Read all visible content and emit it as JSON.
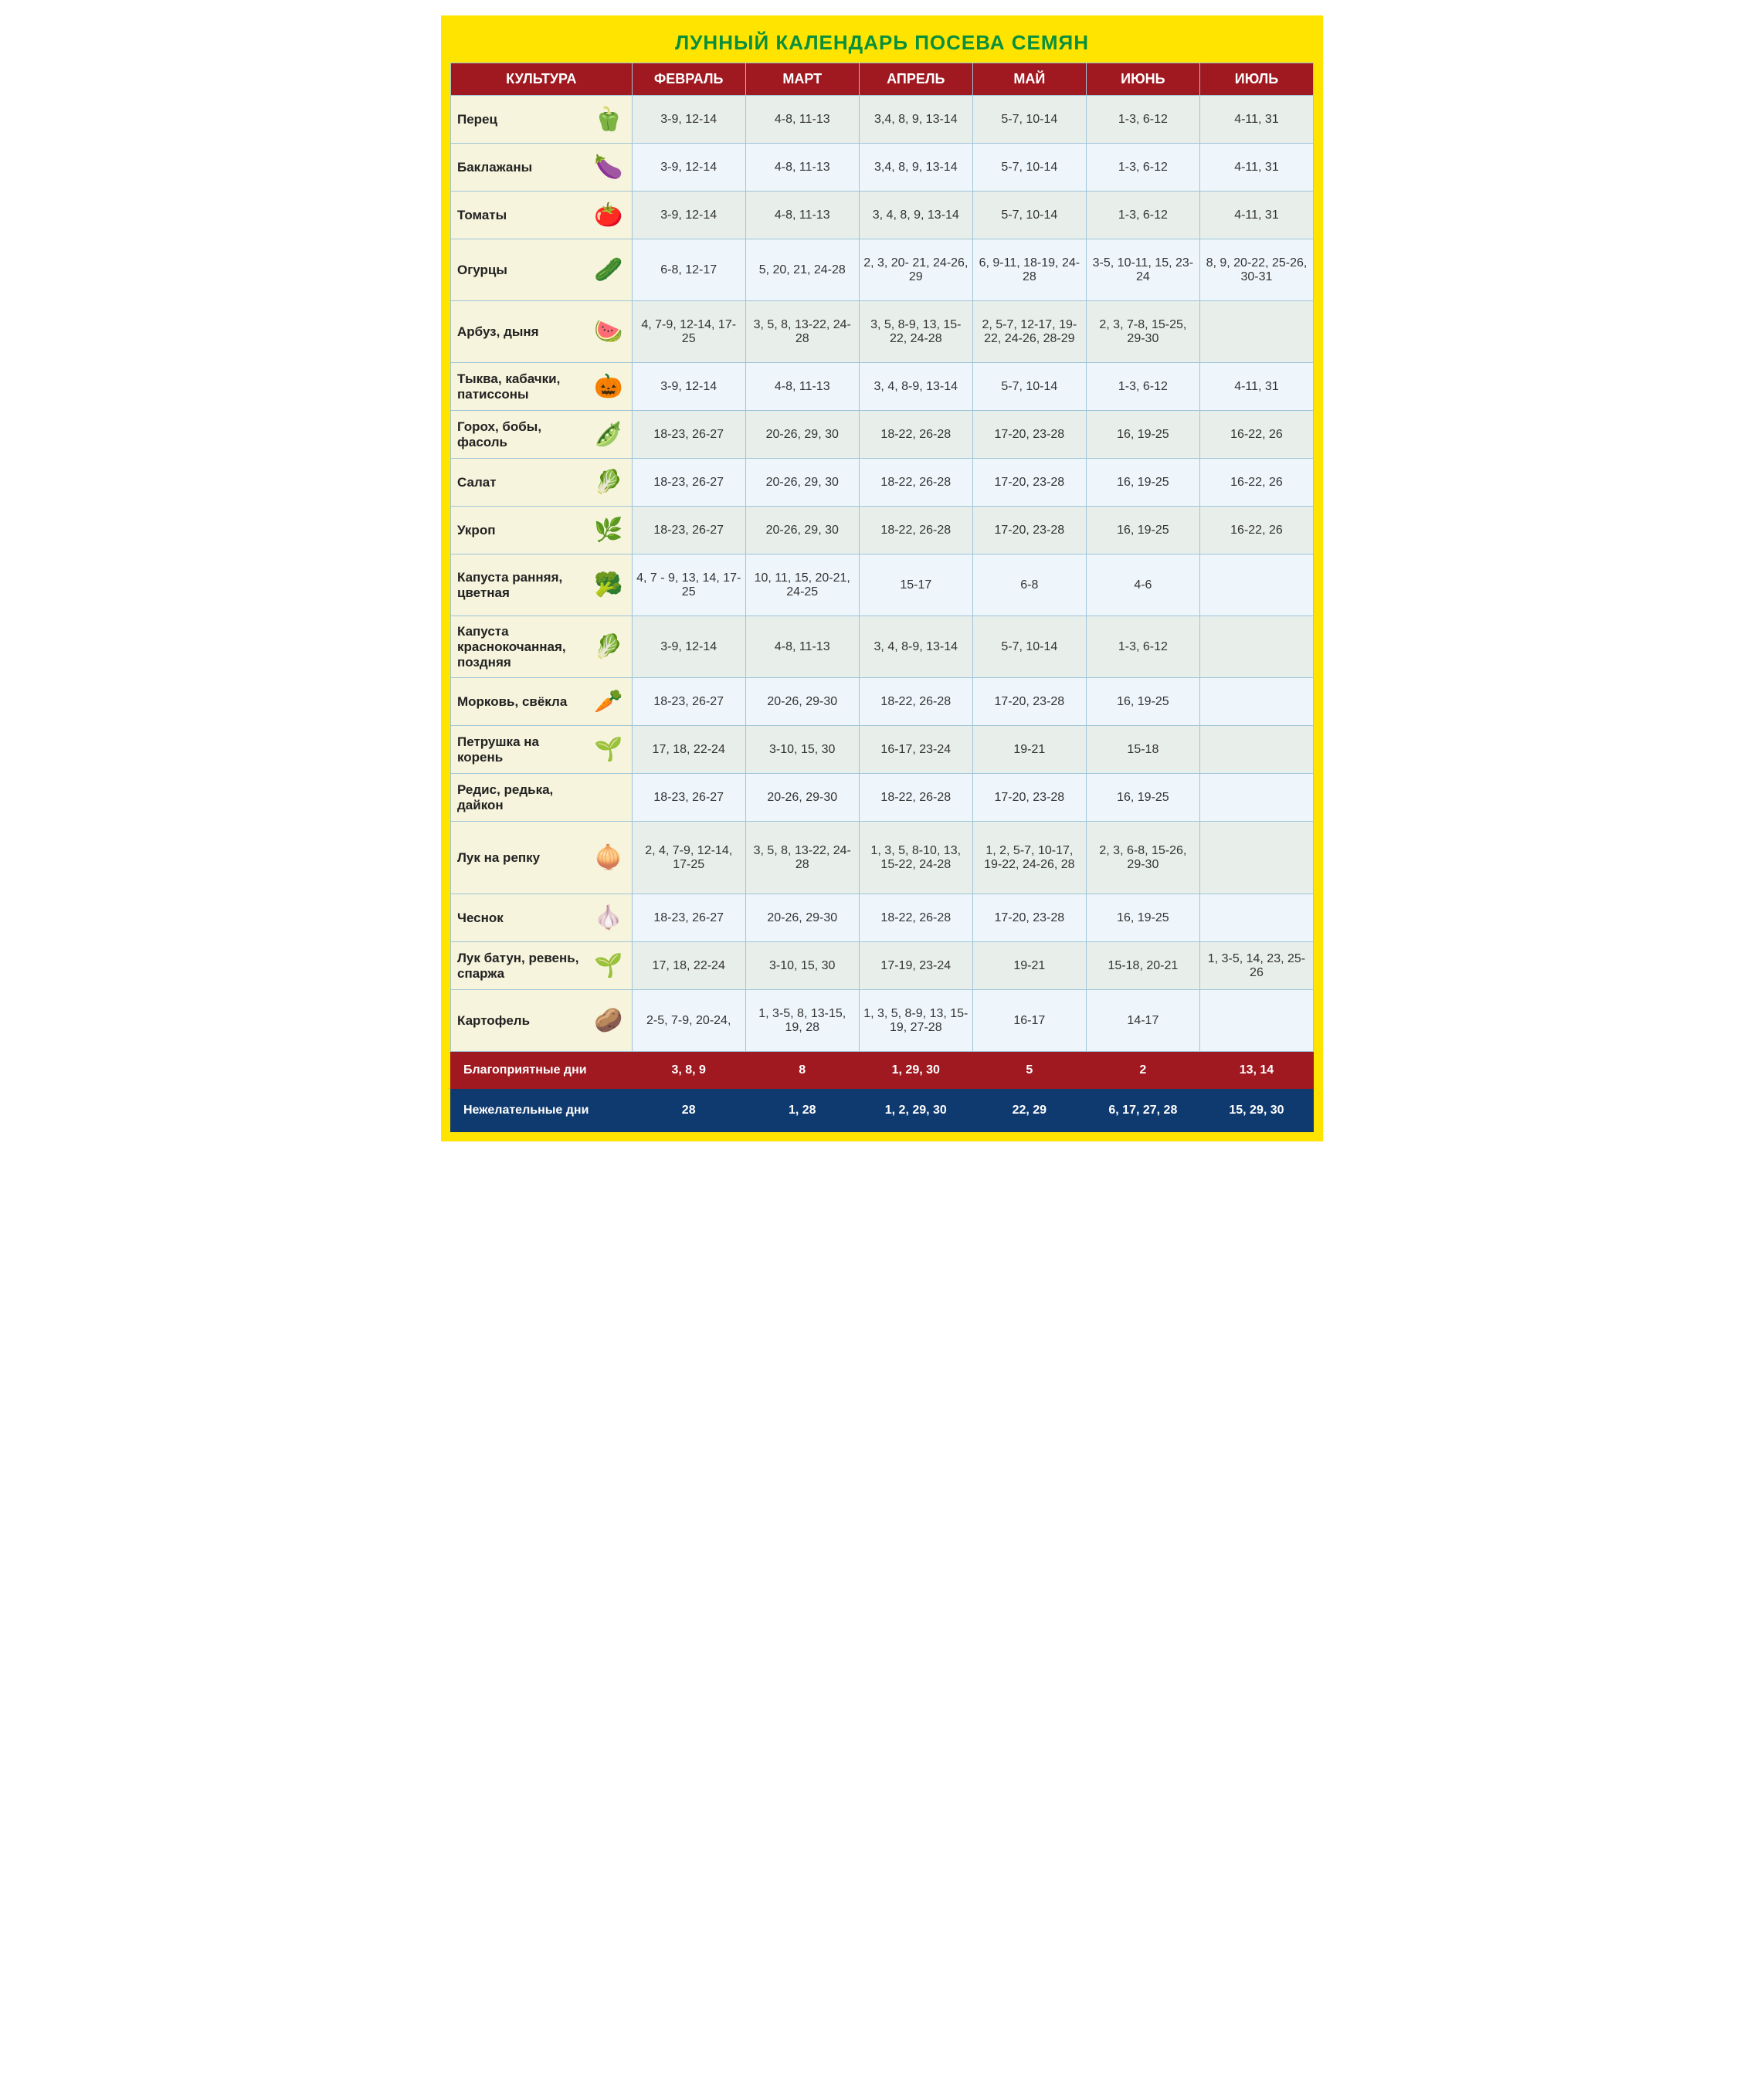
{
  "title": "ЛУННЫЙ КАЛЕНДАРЬ ПОСЕВА СЕМЯН",
  "title_color": "#0a8f3c",
  "title_fontsize": 26,
  "outer_border_color": "#ffe400",
  "title_bg": "#ffe400",
  "header_bg": "#a01820",
  "header_text_color": "#ffffff",
  "grid_border_color": "#9fc5d8",
  "crop_col_bg": "#f6f4dc",
  "row_alt_bg": [
    "#e8eeea",
    "#eef6fb"
  ],
  "cell_text_color": "#333333",
  "cell_fontsize": 16,
  "crop_fontsize": 17,
  "favorable_bg": "#a01820",
  "unfavorable_bg": "#0f3a6f",
  "columns": [
    "КУЛЬТУРА",
    "ФЕВРАЛЬ",
    "МАРТ",
    "АПРЕЛЬ",
    "МАЙ",
    "ИЮНЬ",
    "ИЮЛЬ"
  ],
  "rows": [
    {
      "crop": "Перец",
      "icon": "🫑",
      "vals": [
        "3-9, 12-14",
        "4-8, 11-13",
        "3,4, 8, 9, 13-14",
        "5-7, 10-14",
        "1-3, 6-12",
        "4-11, 31"
      ]
    },
    {
      "crop": "Баклажаны",
      "icon": "🍆",
      "vals": [
        "3-9, 12-14",
        "4-8, 11-13",
        "3,4, 8, 9, 13-14",
        "5-7, 10-14",
        "1-3, 6-12",
        "4-11, 31"
      ]
    },
    {
      "crop": "Томаты",
      "icon": "🍅",
      "vals": [
        "3-9, 12-14",
        "4-8, 11-13",
        "3, 4, 8, 9, 13-14",
        "5-7, 10-14",
        "1-3, 6-12",
        "4-11, 31"
      ]
    },
    {
      "crop": "Огурцы",
      "icon": "🥒",
      "tall": true,
      "vals": [
        "6-8, 12-17",
        "5, 20, 21, 24-28",
        "2, 3, 20- 21, 24-26, 29",
        "6, 9-11, 18-19, 24-28",
        "3-5, 10-11, 15, 23-24",
        "8, 9, 20-22, 25-26, 30-31"
      ]
    },
    {
      "crop": "Арбуз, дыня",
      "icon": "🍉",
      "tall": true,
      "vals": [
        "4, 7-9, 12-14, 17-25",
        "3, 5, 8, 13-22, 24-28",
        "3, 5, 8-9, 13, 15-22, 24-28",
        "2, 5-7, 12-17, 19-22, 24-26, 28-29",
        "2, 3, 7-8, 15-25, 29-30",
        ""
      ]
    },
    {
      "crop": "Тыква, кабачки, патиссоны",
      "icon": "🎃",
      "vals": [
        "3-9, 12-14",
        "4-8, 11-13",
        "3, 4, 8-9, 13-14",
        "5-7, 10-14",
        "1-3, 6-12",
        "4-11, 31"
      ]
    },
    {
      "crop": "Горох, бобы, фасоль",
      "icon": "🫛",
      "vals": [
        "18-23, 26-27",
        "20-26, 29, 30",
        "18-22, 26-28",
        "17-20, 23-28",
        "16, 19-25",
        "16-22, 26"
      ]
    },
    {
      "crop": "Салат",
      "icon": "🥬",
      "vals": [
        "18-23, 26-27",
        "20-26, 29, 30",
        "18-22, 26-28",
        "17-20, 23-28",
        "16, 19-25",
        "16-22, 26"
      ]
    },
    {
      "crop": "Укроп",
      "icon": "🌿",
      "vals": [
        "18-23, 26-27",
        "20-26, 29, 30",
        "18-22, 26-28",
        "17-20, 23-28",
        "16, 19-25",
        "16-22, 26"
      ]
    },
    {
      "crop": "Капуста ранняя, цветная",
      "icon": "🥦",
      "tall": true,
      "vals": [
        "4, 7 - 9, 13, 14, 17-25",
        "10, 11, 15, 20-21, 24-25",
        "15-17",
        "6-8",
        "4-6",
        ""
      ]
    },
    {
      "crop": "Капуста краснокочанная, поздняя",
      "icon": "🥬",
      "tall": true,
      "vals": [
        "3-9, 12-14",
        "4-8, 11-13",
        "3, 4, 8-9, 13-14",
        "5-7, 10-14",
        "1-3, 6-12",
        ""
      ]
    },
    {
      "crop": "Морковь, свёкла",
      "icon": "🥕",
      "vals": [
        "18-23, 26-27",
        "20-26, 29-30",
        "18-22, 26-28",
        "17-20, 23-28",
        "16, 19-25",
        ""
      ]
    },
    {
      "crop": "Петрушка на корень",
      "icon": "🌱",
      "vals": [
        "17, 18, 22-24",
        "3-10, 15, 30",
        "16-17, 23-24",
        "19-21",
        "15-18",
        ""
      ]
    },
    {
      "crop": "Редис, редька, дайкон",
      "icon": "",
      "vals": [
        "18-23, 26-27",
        "20-26, 29-30",
        "18-22, 26-28",
        "17-20, 23-28",
        "16, 19-25",
        ""
      ]
    },
    {
      "crop": "Лук на репку",
      "icon": "🧅",
      "xtall": true,
      "vals": [
        "2, 4, 7-9, 12-14, 17-25",
        "3, 5, 8, 13-22, 24-28",
        "1, 3, 5, 8-10, 13, 15-22, 24-28",
        "1, 2, 5-7, 10-17, 19-22, 24-26, 28",
        "2, 3, 6-8, 15-26, 29-30",
        ""
      ]
    },
    {
      "crop": "Чеснок",
      "icon": "🧄",
      "vals": [
        "18-23, 26-27",
        "20-26, 29-30",
        "18-22, 26-28",
        "17-20, 23-28",
        "16, 19-25",
        ""
      ]
    },
    {
      "crop": "Лук батун, ревень, спаржа",
      "icon": "🌱",
      "vals": [
        "17, 18, 22-24",
        "3-10, 15, 30",
        "17-19, 23-24",
        "19-21",
        "15-18, 20-21",
        "1, 3-5, 14, 23, 25-26"
      ]
    },
    {
      "crop": "Картофель",
      "icon": "🥔",
      "tall": true,
      "vals": [
        "2-5, 7-9, 20-24,",
        "1, 3-5, 8, 13-15, 19, 28",
        "1, 3, 5, 8-9, 13, 15-19, 27-28",
        "16-17",
        "14-17",
        ""
      ]
    }
  ],
  "favorable": {
    "label": "Благоприятные дни",
    "vals": [
      "3, 8, 9",
      "8",
      "1, 29, 30",
      "5",
      "2",
      "13, 14"
    ]
  },
  "unfavorable": {
    "label": "Нежелательные дни",
    "vals": [
      "28",
      "1, 28",
      "1, 2, 29, 30",
      "22, 29",
      "6, 17, 27, 28",
      "15, 29, 30"
    ]
  }
}
